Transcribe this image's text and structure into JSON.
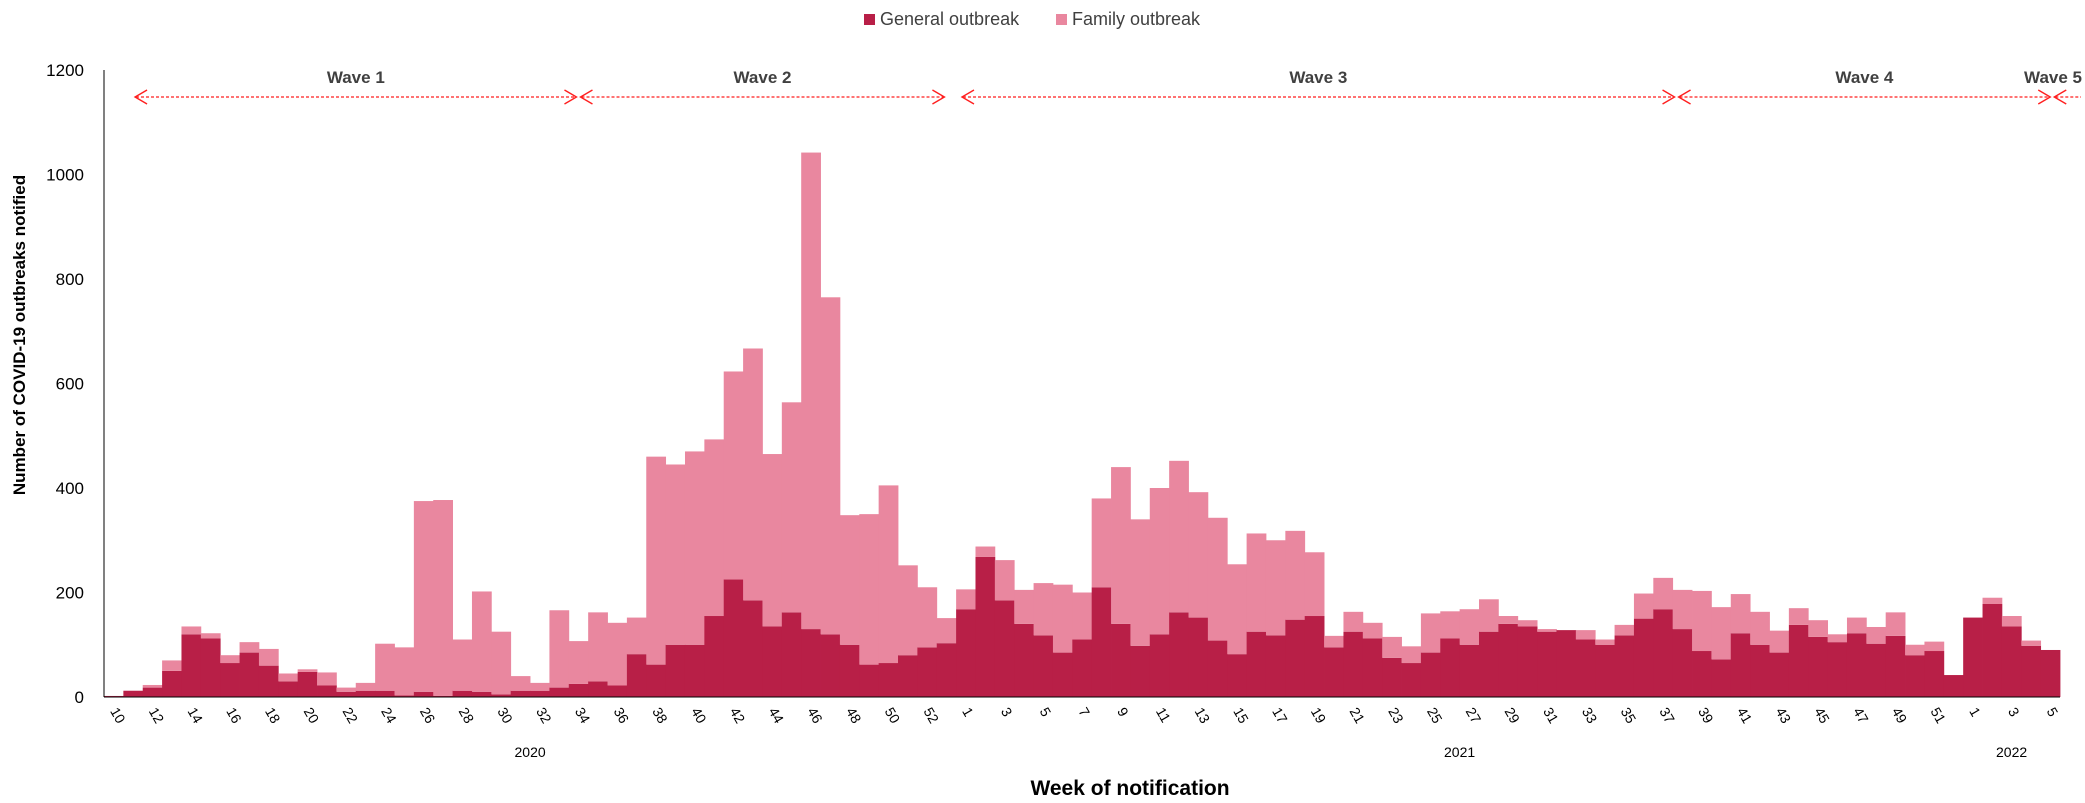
{
  "colors": {
    "general": "#b81f47",
    "family": "#e9879f",
    "axis": "#000000",
    "wave_arrow": "#ff1f1f"
  },
  "chart_data": {
    "type": "bar",
    "stacked": true,
    "xlabel": "Week of notification",
    "ylabel": "Number of COVID-19 outbreaks notified",
    "ylim": [
      0,
      1200
    ],
    "yticks": [
      0,
      200,
      400,
      600,
      800,
      1000,
      1200
    ],
    "grid": false,
    "legend_position": "top-center",
    "legend": [
      "General outbreak",
      "Family outbreak"
    ],
    "weeks": [
      10,
      11,
      12,
      13,
      14,
      15,
      16,
      17,
      18,
      19,
      20,
      21,
      22,
      23,
      24,
      25,
      26,
      27,
      28,
      29,
      30,
      31,
      32,
      33,
      34,
      35,
      36,
      37,
      38,
      39,
      40,
      41,
      42,
      43,
      44,
      45,
      46,
      47,
      48,
      49,
      50,
      51,
      52,
      53,
      1,
      2,
      3,
      4,
      5,
      6,
      7,
      8,
      9,
      10,
      11,
      12,
      13,
      14,
      15,
      16,
      17,
      18,
      19,
      20,
      21,
      22,
      23,
      24,
      25,
      26,
      27,
      28,
      29,
      30,
      31,
      32,
      33,
      34,
      35,
      36,
      37,
      38,
      39,
      40,
      41,
      42,
      43,
      44,
      45,
      46,
      47,
      48,
      49,
      50,
      51,
      52,
      1,
      2,
      3,
      4,
      5
    ],
    "tick_labels": [
      "10",
      "",
      "12",
      "",
      "14",
      "",
      "16",
      "",
      "18",
      "",
      "20",
      "",
      "22",
      "",
      "24",
      "",
      "26",
      "",
      "28",
      "",
      "30",
      "",
      "32",
      "",
      "34",
      "",
      "36",
      "",
      "38",
      "",
      "40",
      "",
      "42",
      "",
      "44",
      "",
      "46",
      "",
      "48",
      "",
      "50",
      "",
      "52",
      "",
      "1",
      "",
      "3",
      "",
      "5",
      "",
      "7",
      "",
      "9",
      "",
      "11",
      "",
      "13",
      "",
      "15",
      "",
      "17",
      "",
      "19",
      "",
      "21",
      "",
      "23",
      "",
      "25",
      "",
      "27",
      "",
      "29",
      "",
      "31",
      "",
      "33",
      "",
      "35",
      "",
      "37",
      "",
      "39",
      "",
      "41",
      "",
      "43",
      "",
      "45",
      "",
      "47",
      "",
      "49",
      "",
      "51",
      "",
      "1",
      "",
      "3",
      "",
      "5"
    ],
    "years": [
      {
        "label": "2020",
        "start": 0,
        "end": 43
      },
      {
        "label": "2021",
        "start": 44,
        "end": 95
      },
      {
        "label": "2022",
        "start": 96,
        "end": 100
      }
    ],
    "series": [
      {
        "name": "General outbreak",
        "values": [
          2,
          12,
          18,
          50,
          120,
          112,
          65,
          85,
          60,
          30,
          48,
          22,
          10,
          12,
          12,
          3,
          10,
          2,
          12,
          10,
          5,
          12,
          12,
          18,
          25,
          30,
          22,
          82,
          62,
          100,
          100,
          155,
          225,
          185,
          135,
          162,
          130,
          120,
          100,
          62,
          65,
          80,
          95,
          103,
          168,
          268,
          185,
          140,
          118,
          85,
          110,
          210,
          140,
          98,
          120,
          162,
          152,
          108,
          82,
          125,
          118,
          148,
          155,
          95,
          125,
          112,
          75,
          65,
          85,
          112,
          100,
          125,
          140,
          135,
          125,
          128,
          110,
          100,
          118,
          150,
          168,
          130,
          88,
          72,
          122,
          100,
          85,
          138,
          115,
          105,
          122,
          102,
          117,
          80,
          88,
          42,
          152,
          178,
          135,
          98,
          90
        ]
      },
      {
        "name": "Family outbreak",
        "values": [
          0,
          0,
          5,
          20,
          15,
          10,
          15,
          20,
          32,
          15,
          5,
          25,
          8,
          15,
          90,
          92,
          365,
          375,
          98,
          192,
          120,
          28,
          15,
          148,
          82,
          132,
          120,
          70,
          398,
          345,
          370,
          338,
          398,
          482,
          330,
          402,
          912,
          645,
          248,
          288,
          340,
          172,
          115,
          48,
          38,
          20,
          77,
          65,
          100,
          130,
          90,
          170,
          300,
          242,
          280,
          290,
          240,
          235,
          172,
          188,
          182,
          170,
          122,
          22,
          38,
          30,
          40,
          32,
          75,
          52,
          68,
          62,
          15,
          12,
          5,
          0,
          18,
          10,
          20,
          48,
          60,
          75,
          115,
          100,
          75,
          63,
          42,
          32,
          32,
          15,
          30,
          32,
          45,
          20,
          18,
          0,
          0,
          12,
          20,
          10,
          0
        ]
      }
    ],
    "waves": [
      {
        "label": "Wave 1",
        "start": 1.5,
        "end": 24.5
      },
      {
        "label": "Wave 2",
        "start": 24.5,
        "end": 43.5
      },
      {
        "label": "Wave 3",
        "start": 44.2,
        "end": 81.2
      },
      {
        "label": "Wave 4",
        "start": 81.2,
        "end": 100.6
      },
      {
        "label": "Wave 5",
        "start": 100.6,
        "end": 103.0
      }
    ]
  }
}
